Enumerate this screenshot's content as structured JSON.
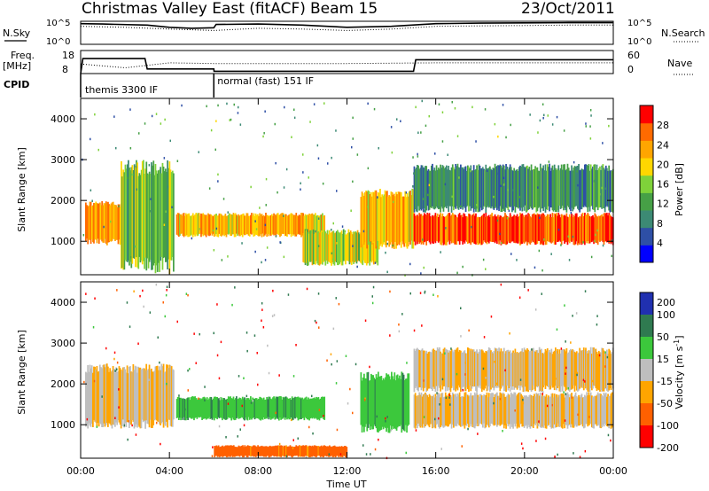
{
  "title": "Christmas Valley East (fitACF)",
  "beam": "Beam 15",
  "date": "23/Oct/2011",
  "left_labels": {
    "nsky": "N.Sky",
    "freq": "Freq.",
    "freq_unit": "[MHz]",
    "cpid": "CPID"
  },
  "right_labels": {
    "nsearch": "N.Search",
    "nave": "Nave"
  },
  "cpid_segments": [
    {
      "label": "themis 3300 IF",
      "start_hour": 0
    },
    {
      "label": "normal (fast) 151 IF",
      "start_hour": 6
    }
  ],
  "noise_axis": {
    "left_ticks": [
      "10^5",
      "10^0"
    ],
    "right_ticks": [
      "10^5",
      "10^0"
    ]
  },
  "freq_axis": {
    "left_ticks": [
      "18",
      "8"
    ],
    "right_ticks": [
      "60",
      "0"
    ]
  },
  "chart_data": [
    {
      "type": "line",
      "panel": "noise",
      "y_scale": "log",
      "ylim": [
        1,
        100000
      ],
      "series": [
        {
          "name": "N.Sky",
          "x": [
            0,
            1,
            3,
            4,
            5,
            6,
            6.1,
            8,
            10,
            12,
            14,
            16,
            18,
            20,
            22,
            24
          ],
          "y": [
            30000,
            25000,
            15000,
            5000,
            3000,
            4000,
            20000,
            25000,
            15000,
            5000,
            8000,
            30000,
            40000,
            45000,
            50000,
            50000
          ]
        },
        {
          "name": "N.Search",
          "x": [
            0,
            2,
            4,
            6,
            8,
            10,
            12,
            14,
            16,
            18,
            20,
            22,
            24
          ],
          "y": [
            8000,
            5000,
            2000,
            1000,
            3000,
            2000,
            1000,
            2000,
            8000,
            10000,
            12000,
            15000,
            15000
          ]
        }
      ]
    },
    {
      "type": "line",
      "panel": "frequency",
      "series": [
        {
          "name": "Freq.",
          "x": [
            0,
            0.1,
            2.9,
            3.0,
            6.0,
            6.01,
            15.0,
            15.1,
            24
          ],
          "y": [
            8,
            14.5,
            14.5,
            10,
            10,
            9,
            9,
            14,
            14
          ],
          "ylim": [
            8,
            18
          ]
        },
        {
          "name": "Nave",
          "x": [
            0,
            2,
            4,
            6,
            8,
            12,
            16,
            20,
            24
          ],
          "y": [
            25,
            15,
            28,
            26,
            26,
            26,
            28,
            28,
            28
          ],
          "ylim": [
            0,
            60
          ]
        }
      ]
    },
    {
      "type": "heatmap",
      "panel": "power",
      "title": "",
      "xlabel": "",
      "ylabel": "Slant Range [km]",
      "xlim": [
        0,
        24
      ],
      "ylim": [
        180,
        4500
      ],
      "x_ticks": [
        "00:00",
        "04:00",
        "08:00",
        "12:00",
        "16:00",
        "20:00",
        "00:00"
      ],
      "y_ticks": [
        1000,
        2000,
        3000,
        4000
      ],
      "colorbar": {
        "label": "Power [dB]",
        "ticks": [
          4,
          8,
          12,
          16,
          20,
          24,
          28
        ],
        "range": [
          0,
          32
        ],
        "colors": [
          "#0000ff",
          "#2e4fa6",
          "#3c8a74",
          "#46a046",
          "#7fd23a",
          "#ffd700",
          "#ffa500",
          "#ff6a00",
          "#ff0000"
        ]
      },
      "echo_bands": [
        {
          "start_hour": 0.2,
          "end_hour": 2.8,
          "range_km": [
            900,
            2000
          ],
          "level_db": 24
        },
        {
          "start_hour": 1.8,
          "end_hour": 4.2,
          "range_km": [
            200,
            3000
          ],
          "level_db": 14
        },
        {
          "start_hour": 4.3,
          "end_hour": 11.0,
          "range_km": [
            1100,
            1700
          ],
          "level_db": 22
        },
        {
          "start_hour": 10.0,
          "end_hour": 13.4,
          "range_km": [
            400,
            1300
          ],
          "level_db": 18
        },
        {
          "start_hour": 12.6,
          "end_hour": 15.0,
          "range_km": [
            800,
            2300
          ],
          "level_db": 22
        },
        {
          "start_hour": 15.0,
          "end_hour": 24.0,
          "range_km": [
            900,
            1700
          ],
          "level_db": 28
        },
        {
          "start_hour": 15.0,
          "end_hour": 24.0,
          "range_km": [
            1700,
            2900
          ],
          "level_db": 10
        }
      ]
    },
    {
      "type": "heatmap",
      "panel": "velocity",
      "title": "",
      "xlabel": "Time UT",
      "ylabel": "Slant Range [km]",
      "xlim": [
        0,
        24
      ],
      "ylim": [
        180,
        4500
      ],
      "x_ticks": [
        "00:00",
        "04:00",
        "08:00",
        "12:00",
        "16:00",
        "20:00",
        "00:00"
      ],
      "y_ticks": [
        1000,
        2000,
        3000,
        4000
      ],
      "colorbar": {
        "label": "Velocity [m s^-1]",
        "ticks": [
          200,
          100,
          50,
          15,
          -15,
          -50,
          -100,
          -200
        ],
        "colors": [
          "#2030b0",
          "#2f7a50",
          "#3cc83c",
          "#bebebe",
          "#ffa500",
          "#ff6000",
          "#ff0000"
        ]
      },
      "echo_bands": [
        {
          "start_hour": 0.2,
          "end_hour": 4.2,
          "range_km": [
            900,
            2500
          ],
          "velocity_ms": 0
        },
        {
          "start_hour": 4.3,
          "end_hour": 11.0,
          "range_km": [
            1100,
            1700
          ],
          "velocity_ms": 60
        },
        {
          "start_hour": 6.0,
          "end_hour": 12.0,
          "range_km": [
            200,
            500
          ],
          "velocity_ms": -50
        },
        {
          "start_hour": 12.6,
          "end_hour": 14.8,
          "range_km": [
            800,
            2300
          ],
          "velocity_ms": 60
        },
        {
          "start_hour": 15.0,
          "end_hour": 24.0,
          "range_km": [
            900,
            1800
          ],
          "velocity_ms": 0
        },
        {
          "start_hour": 15.0,
          "end_hour": 24.0,
          "range_km": [
            1800,
            2900
          ],
          "velocity_ms": 0
        }
      ]
    }
  ]
}
